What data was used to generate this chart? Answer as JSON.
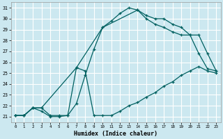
{
  "xlabel": "Humidex (Indice chaleur)",
  "bg_color": "#cce8f0",
  "grid_color": "#ffffff",
  "line_color": "#006060",
  "xlim": [
    -0.5,
    23.5
  ],
  "ylim": [
    20.5,
    31.5
  ],
  "xticks": [
    0,
    1,
    2,
    3,
    4,
    5,
    6,
    7,
    8,
    9,
    10,
    11,
    12,
    13,
    14,
    15,
    16,
    17,
    18,
    19,
    20,
    21,
    22,
    23
  ],
  "yticks": [
    21,
    22,
    23,
    24,
    25,
    26,
    27,
    28,
    29,
    30,
    31
  ],
  "line1_x": [
    0,
    1,
    2,
    3,
    4,
    5,
    6,
    7,
    8,
    9,
    10,
    11,
    12,
    13,
    14,
    15,
    16,
    17,
    18,
    19,
    20,
    21,
    22,
    23
  ],
  "line1_y": [
    21.1,
    21.1,
    21.8,
    21.8,
    21.1,
    21.1,
    21.1,
    22.2,
    24.8,
    27.2,
    29.2,
    29.8,
    30.5,
    31.0,
    30.8,
    30.3,
    30.0,
    30.0,
    29.5,
    29.2,
    28.5,
    28.5,
    26.8,
    25.2
  ],
  "line2_x": [
    0,
    1,
    2,
    3,
    4,
    5,
    6,
    7,
    8,
    9,
    10,
    11,
    12,
    13,
    14,
    15,
    16,
    17,
    18,
    19,
    20,
    21,
    22,
    23
  ],
  "line2_y": [
    21.1,
    21.1,
    21.8,
    21.5,
    21.0,
    21.0,
    21.1,
    25.5,
    25.2,
    21.1,
    21.1,
    21.1,
    21.5,
    22.0,
    22.3,
    22.8,
    23.2,
    23.8,
    24.2,
    24.8,
    25.2,
    25.6,
    25.2,
    25.0
  ],
  "line3_x": [
    0,
    1,
    2,
    3,
    7,
    10,
    14,
    15,
    16,
    17,
    18,
    19,
    20,
    21,
    22,
    23
  ],
  "line3_y": [
    21.1,
    21.1,
    21.8,
    21.8,
    25.5,
    29.2,
    30.8,
    30.0,
    29.5,
    29.2,
    28.8,
    28.5,
    28.5,
    26.8,
    25.4,
    25.2
  ]
}
